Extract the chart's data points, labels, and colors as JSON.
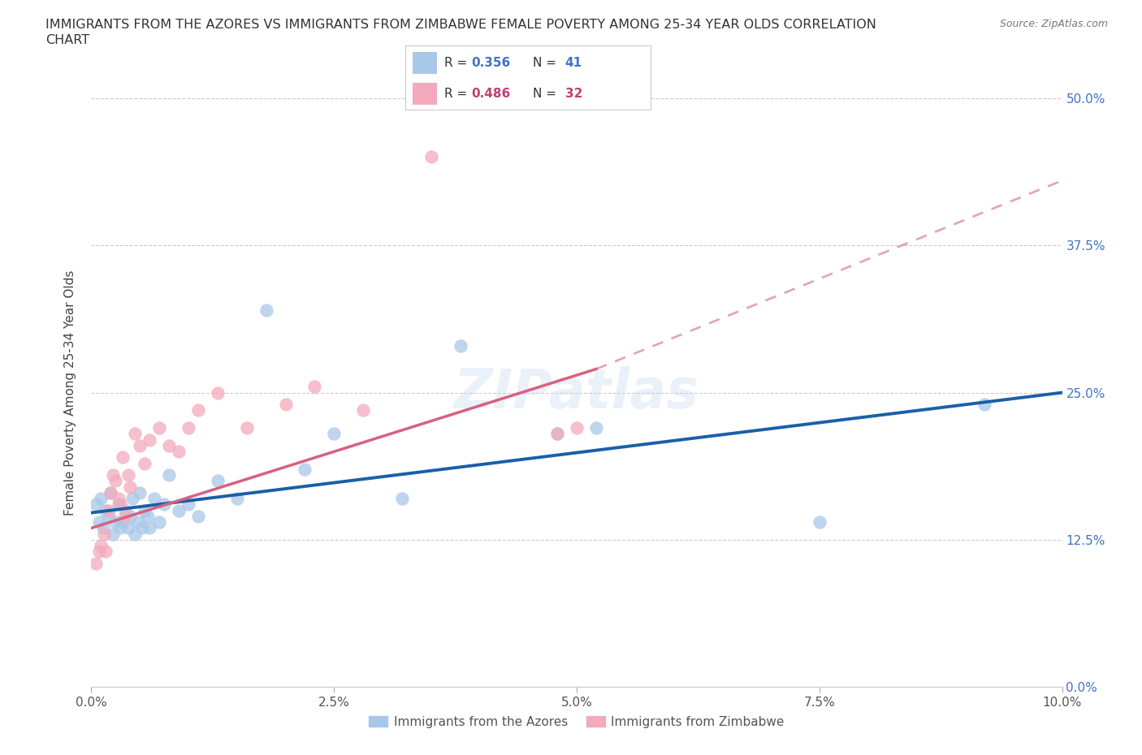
{
  "title_line1": "IMMIGRANTS FROM THE AZORES VS IMMIGRANTS FROM ZIMBABWE FEMALE POVERTY AMONG 25-34 YEAR OLDS CORRELATION",
  "title_line2": "CHART",
  "source_text": "Source: ZipAtlas.com",
  "ylabel": "Female Poverty Among 25-34 Year Olds",
  "xlabel_ticks": [
    "0.0%",
    "2.5%",
    "5.0%",
    "7.5%",
    "10.0%"
  ],
  "xlabel_vals": [
    0.0,
    2.5,
    5.0,
    7.5,
    10.0
  ],
  "ylabel_ticks": [
    "0.0%",
    "12.5%",
    "25.0%",
    "37.5%",
    "50.0%"
  ],
  "ylabel_vals": [
    0.0,
    12.5,
    25.0,
    37.5,
    50.0
  ],
  "xlim": [
    0.0,
    10.0
  ],
  "ylim": [
    0.0,
    50.0
  ],
  "blue_r": "0.356",
  "blue_n": "41",
  "pink_r": "0.486",
  "pink_n": "32",
  "watermark": "ZIPatlas",
  "blue_color": "#A8C8E8",
  "pink_color": "#F4AABC",
  "blue_line_color": "#1A5FA8",
  "pink_line_color": "#D96080",
  "pink_dash_color": "#E0A8B8",
  "blue_label": "Immigrants from the Azores",
  "pink_label": "Immigrants from Zimbabwe",
  "azores_x": [
    0.05,
    0.08,
    0.1,
    0.12,
    0.15,
    0.18,
    0.2,
    0.22,
    0.25,
    0.28,
    0.3,
    0.32,
    0.35,
    0.38,
    0.4,
    0.42,
    0.45,
    0.48,
    0.5,
    0.52,
    0.55,
    0.58,
    0.6,
    0.65,
    0.7,
    0.75,
    0.8,
    0.9,
    1.0,
    1.1,
    1.3,
    1.5,
    1.8,
    2.2,
    2.5,
    3.2,
    3.8,
    4.8,
    5.2,
    7.5,
    9.2
  ],
  "azores_y": [
    15.5,
    14.0,
    16.0,
    13.5,
    15.0,
    14.5,
    16.5,
    13.0,
    14.0,
    15.5,
    13.5,
    14.0,
    15.0,
    13.5,
    14.5,
    16.0,
    13.0,
    14.0,
    16.5,
    13.5,
    15.0,
    14.5,
    13.5,
    16.0,
    14.0,
    15.5,
    18.0,
    15.0,
    15.5,
    14.5,
    17.5,
    16.0,
    32.0,
    18.5,
    21.5,
    16.0,
    29.0,
    21.5,
    22.0,
    14.0,
    24.0
  ],
  "zimbabwe_x": [
    0.05,
    0.08,
    0.1,
    0.13,
    0.15,
    0.18,
    0.2,
    0.22,
    0.25,
    0.28,
    0.3,
    0.32,
    0.35,
    0.38,
    0.4,
    0.45,
    0.5,
    0.55,
    0.6,
    0.7,
    0.8,
    0.9,
    1.0,
    1.1,
    1.3,
    1.6,
    2.0,
    2.3,
    2.8,
    3.5,
    4.8,
    5.0
  ],
  "zimbabwe_y": [
    10.5,
    11.5,
    12.0,
    13.0,
    11.5,
    15.0,
    16.5,
    18.0,
    17.5,
    16.0,
    15.5,
    19.5,
    14.5,
    18.0,
    17.0,
    21.5,
    20.5,
    19.0,
    21.0,
    22.0,
    20.5,
    20.0,
    22.0,
    23.5,
    25.0,
    22.0,
    24.0,
    25.5,
    23.5,
    45.0,
    21.5,
    22.0
  ],
  "blue_line_x0": 0.0,
  "blue_line_y0": 14.8,
  "blue_line_x1": 10.0,
  "blue_line_y1": 25.0,
  "pink_line_x0": 0.0,
  "pink_line_y0": 13.5,
  "pink_line_x1": 5.2,
  "pink_line_y1": 27.0,
  "pink_dash_x0": 5.2,
  "pink_dash_y0": 27.0,
  "pink_dash_x1": 10.0,
  "pink_dash_y1": 43.0
}
